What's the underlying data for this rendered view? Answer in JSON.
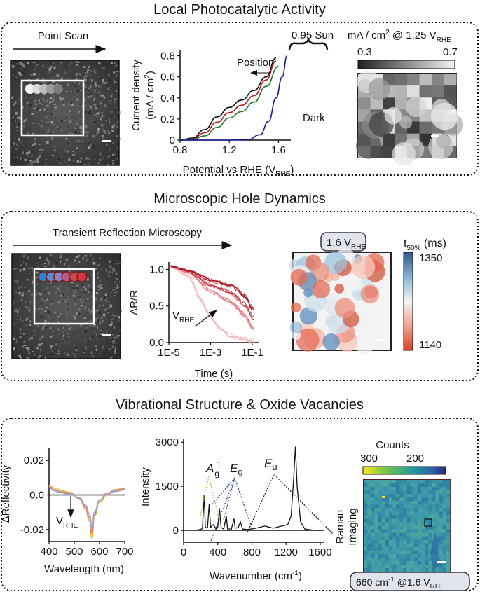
{
  "sections": [
    {
      "title": "Local Photocatalytic Activity",
      "point_scan_label": "Point Scan",
      "inset_label": "0.95 Sun",
      "position_label": "Position",
      "dark_label": "Dark",
      "colorbar": {
        "unit_main": "mA / cm",
        "unit_sup": "2",
        "unit_at": " @ 1.25 V",
        "unit_sub": "RHE",
        "min": "0.3",
        "max": "0.7"
      }
    },
    {
      "title": "Microscopic Hole Dynamics",
      "trm_label": "Transient Reflection Microscopy",
      "vrhe_main": "V",
      "vrhe_sub": "RHE",
      "badge_main": "1.6 V",
      "badge_sub": "RHE",
      "colorbar": {
        "label_main": "t",
        "label_sub": "50%",
        "label_unit": " (ms)",
        "max": "1350",
        "min": "1140"
      }
    },
    {
      "title": "Vibrational Structure & Oxide Vacancies",
      "vrhe_main": "V",
      "vrhe_sub": "RHE",
      "peak_labels": {
        "ag": "A",
        "ag_sub": "g",
        "ag_sup": "1",
        "eg": "E",
        "eg_sub": "g",
        "eu": "E",
        "eu_sub": "u"
      },
      "colorbar": {
        "label": "Counts",
        "left": "300",
        "right": "200"
      },
      "raman_label_1": "Raman",
      "raman_label_2": "Imaging",
      "badge": {
        "main": "660 cm",
        "sup": "-1",
        "mid": " @1.6 V",
        "sub": "RHE"
      }
    }
  ],
  "colors": {
    "black": "#111111",
    "red": "#c2181e",
    "green": "#1f7a1f",
    "navy": "#1a1a9e",
    "pink": "#e89aa0",
    "raman_bg": "#3a93a6"
  },
  "chart_data": [
    {
      "type": "line",
      "xlabel": "Potential vs RHE (V",
      "xlabel_sub": "RHE",
      "xlabel_end": ")",
      "ylabel": "Current density",
      "ylabel2": "(mA / cm",
      "ylabel2_sup": "2",
      "ylabel2_end": ")",
      "xlim": [
        0.8,
        1.7
      ],
      "ylim": [
        0,
        0.85
      ],
      "x_ticks": [
        "0.8",
        "1.2",
        "1.6"
      ],
      "y_ticks": [
        "0",
        "0.2",
        "0.4",
        "0.6",
        "0.8"
      ],
      "series": [
        {
          "color": "#111111",
          "points": [
            [
              0.8,
              0
            ],
            [
              0.9,
              0.02
            ],
            [
              1.0,
              0.1
            ],
            [
              1.1,
              0.22
            ],
            [
              1.2,
              0.31
            ],
            [
              1.3,
              0.38
            ],
            [
              1.4,
              0.47
            ],
            [
              1.5,
              0.6
            ],
            [
              1.58,
              0.78
            ]
          ]
        },
        {
          "color": "#c2181e",
          "points": [
            [
              0.8,
              0
            ],
            [
              0.9,
              0.01
            ],
            [
              1.0,
              0.07
            ],
            [
              1.1,
              0.17
            ],
            [
              1.2,
              0.26
            ],
            [
              1.3,
              0.33
            ],
            [
              1.4,
              0.42
            ],
            [
              1.5,
              0.57
            ],
            [
              1.58,
              0.75
            ]
          ]
        },
        {
          "color": "#1f7a1f",
          "points": [
            [
              0.8,
              0
            ],
            [
              0.9,
              0.005
            ],
            [
              1.0,
              0.04
            ],
            [
              1.1,
              0.12
            ],
            [
              1.2,
              0.21
            ],
            [
              1.3,
              0.27
            ],
            [
              1.4,
              0.36
            ],
            [
              1.5,
              0.51
            ],
            [
              1.6,
              0.7
            ]
          ]
        },
        {
          "color": "#1a1a9e",
          "points": [
            [
              0.8,
              0
            ],
            [
              1.2,
              0
            ],
            [
              1.35,
              0.005
            ],
            [
              1.45,
              0.05
            ],
            [
              1.52,
              0.18
            ],
            [
              1.58,
              0.4
            ],
            [
              1.63,
              0.6
            ],
            [
              1.67,
              0.8
            ]
          ]
        }
      ]
    },
    {
      "type": "line",
      "xlabel": "Time (s)",
      "ylabel": "ΔR/R",
      "x_log": true,
      "xlim": [
        1e-05,
        0.2
      ],
      "ylim": [
        0,
        1.1
      ],
      "x_ticks": [
        "1E-5",
        "1E-3",
        "1E-1"
      ],
      "y_ticks": [
        "0.0",
        "0.5",
        "1.0"
      ],
      "series": [
        {
          "color": "#f2b9bd",
          "points": [
            [
              1e-05,
              1.05
            ],
            [
              0.0001,
              0.9
            ],
            [
              0.0003,
              0.6
            ],
            [
              0.001,
              0.35
            ],
            [
              0.003,
              0.18
            ],
            [
              0.01,
              0.08
            ],
            [
              0.1,
              0.02
            ]
          ]
        },
        {
          "color": "#e47b83",
          "points": [
            [
              1e-05,
              1.05
            ],
            [
              0.0001,
              0.95
            ],
            [
              0.001,
              0.7
            ],
            [
              0.01,
              0.55
            ],
            [
              0.05,
              0.35
            ],
            [
              0.1,
              0.2
            ]
          ]
        },
        {
          "color": "#cc3b45",
          "points": [
            [
              1e-05,
              1.05
            ],
            [
              0.0001,
              0.97
            ],
            [
              0.001,
              0.78
            ],
            [
              0.01,
              0.68
            ],
            [
              0.05,
              0.5
            ],
            [
              0.1,
              0.35
            ]
          ]
        },
        {
          "color": "#b01018",
          "points": [
            [
              1e-05,
              1.05
            ],
            [
              0.0001,
              0.98
            ],
            [
              0.001,
              0.85
            ],
            [
              0.01,
              0.78
            ],
            [
              0.05,
              0.62
            ],
            [
              0.1,
              0.45
            ]
          ]
        }
      ]
    },
    {
      "type": "line",
      "xlabel": "Wavelength (nm)",
      "ylabel": "ΔReflectivity",
      "xlim": [
        400,
        700
      ],
      "ylim": [
        -0.027,
        0.027
      ],
      "x_ticks": [
        "400",
        "500",
        "600",
        "700"
      ],
      "y_ticks": [
        "0.02",
        "0.0",
        "-0.02"
      ],
      "series": [
        {
          "color": "#e8b93a",
          "points": [
            [
              400,
              0.0055
            ],
            [
              420,
              0.004
            ],
            [
              440,
              0.003
            ],
            [
              480,
              0.0015
            ],
            [
              520,
              -0.002
            ],
            [
              545,
              -0.008
            ],
            [
              560,
              -0.015
            ],
            [
              570,
              -0.025
            ],
            [
              580,
              -0.012
            ],
            [
              600,
              -0.004
            ],
            [
              630,
              0.0
            ],
            [
              660,
              0.003
            ],
            [
              700,
              0.004
            ]
          ]
        },
        {
          "color": "#d8808a",
          "points": [
            [
              400,
              0.005
            ],
            [
              420,
              0.003
            ],
            [
              440,
              0.002
            ],
            [
              480,
              0.001
            ],
            [
              520,
              -0.002
            ],
            [
              545,
              -0.007
            ],
            [
              560,
              -0.013
            ],
            [
              570,
              -0.022
            ],
            [
              580,
              -0.011
            ],
            [
              600,
              -0.003
            ],
            [
              630,
              0.001
            ],
            [
              660,
              0.0025
            ],
            [
              700,
              0.0035
            ]
          ]
        },
        {
          "color": "#9fa3c9",
          "points": [
            [
              400,
              0.0045
            ],
            [
              420,
              0.0025
            ],
            [
              440,
              0.0015
            ],
            [
              480,
              0.0005
            ],
            [
              520,
              -0.0015
            ],
            [
              545,
              -0.006
            ],
            [
              560,
              -0.011
            ],
            [
              570,
              -0.019
            ],
            [
              580,
              -0.01
            ],
            [
              600,
              -0.003
            ],
            [
              630,
              0.0005
            ],
            [
              660,
              0.002
            ],
            [
              700,
              0.003
            ]
          ]
        }
      ]
    },
    {
      "type": "line",
      "xlabel": "Wavenumber (cm",
      "xlabel_sup": "-1",
      "xlabel_end": ")",
      "ylabel": "Intensity",
      "xlim": [
        0,
        1650
      ],
      "ylim": [
        -400,
        3100
      ],
      "x_ticks": [
        "0",
        "400",
        "800",
        "1200",
        "1600"
      ],
      "y_ticks": [
        "0",
        "1500",
        "3000"
      ],
      "series": [
        {
          "color": "#111111",
          "points": [
            [
              150,
              0
            ],
            [
              220,
              60
            ],
            [
              240,
              1200
            ],
            [
              255,
              100
            ],
            [
              280,
              100
            ],
            [
              300,
              900
            ],
            [
              315,
              100
            ],
            [
              330,
              150
            ],
            [
              350,
              200
            ],
            [
              380,
              50
            ],
            [
              400,
              100
            ],
            [
              420,
              750
            ],
            [
              440,
              100
            ],
            [
              470,
              50
            ],
            [
              500,
              500
            ],
            [
              515,
              50
            ],
            [
              560,
              50
            ],
            [
              590,
              400
            ],
            [
              605,
              80
            ],
            [
              640,
              100
            ],
            [
              665,
              300
            ],
            [
              690,
              50
            ],
            [
              750,
              30
            ],
            [
              850,
              80
            ],
            [
              950,
              150
            ],
            [
              1050,
              80
            ],
            [
              1150,
              150
            ],
            [
              1220,
              200
            ],
            [
              1260,
              500
            ],
            [
              1290,
              1800
            ],
            [
              1310,
              2850
            ],
            [
              1330,
              1500
            ],
            [
              1370,
              300
            ],
            [
              1420,
              50
            ],
            [
              1500,
              20
            ],
            [
              1600,
              0
            ]
          ]
        }
      ]
    }
  ]
}
